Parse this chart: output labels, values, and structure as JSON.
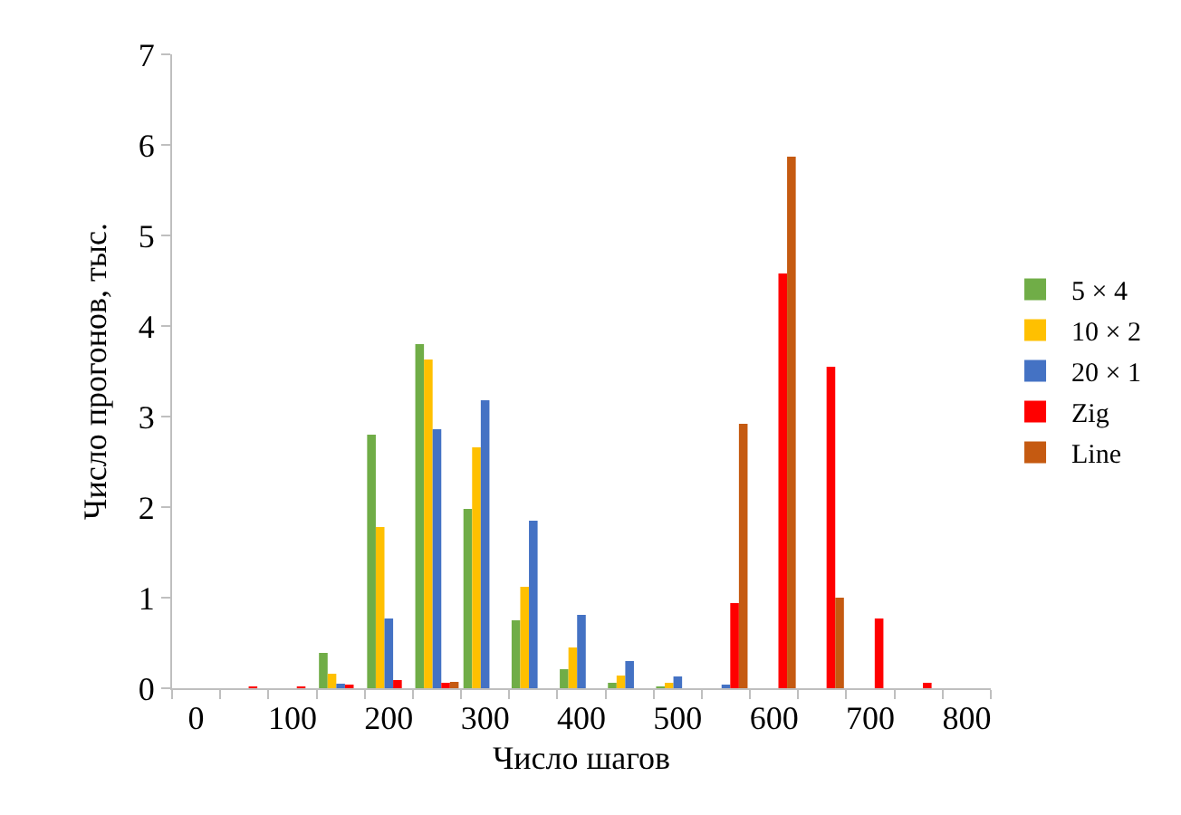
{
  "chart_data": {
    "type": "bar",
    "xlabel": "Число шагов",
    "ylabel": "Число прогонов, тыс.",
    "categories": [
      "0",
      null,
      "100",
      null,
      "200",
      null,
      "300",
      null,
      "400",
      null,
      "500",
      null,
      "600",
      null,
      "700",
      null,
      "800"
    ],
    "series": [
      {
        "name": "5 × 4",
        "color": "#70ad47",
        "values": [
          null,
          null,
          null,
          0.39,
          2.8,
          3.8,
          1.98,
          0.75,
          0.21,
          0.06,
          0.01,
          null,
          null,
          null,
          null,
          null,
          null
        ]
      },
      {
        "name": "10 × 2",
        "color": "#ffc000",
        "values": [
          null,
          null,
          null,
          0.16,
          1.78,
          3.63,
          2.66,
          1.12,
          0.45,
          0.14,
          0.06,
          null,
          null,
          null,
          null,
          null,
          null
        ]
      },
      {
        "name": "20 × 1",
        "color": "#4472c4",
        "values": [
          null,
          null,
          null,
          0.05,
          0.77,
          2.86,
          3.18,
          1.85,
          0.81,
          0.3,
          0.13,
          0.04,
          null,
          null,
          null,
          null,
          null
        ]
      },
      {
        "name": "Zig",
        "color": "#ff0000",
        "values": [
          null,
          0.01,
          0.01,
          0.04,
          0.09,
          0.06,
          null,
          null,
          null,
          null,
          null,
          0.94,
          4.58,
          3.55,
          0.77,
          0.06,
          null
        ]
      },
      {
        "name": "Line",
        "color": "#c55a11",
        "values": [
          null,
          null,
          null,
          null,
          null,
          0.07,
          null,
          null,
          null,
          null,
          null,
          2.92,
          5.87,
          1.0,
          null,
          null,
          null
        ]
      }
    ],
    "ylim": [
      0,
      7
    ],
    "yticks": [
      0,
      1,
      2,
      3,
      4,
      5,
      6,
      7
    ],
    "legend": "right"
  }
}
